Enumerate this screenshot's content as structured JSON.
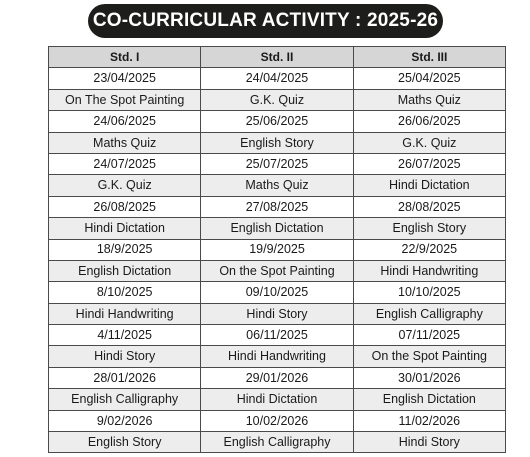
{
  "title": "CO-CURRICULAR ACTIVITY : 2025-26",
  "columns": [
    "Std. I",
    "Std. II",
    "Std. III"
  ],
  "rows": [
    [
      "23/04/2025",
      "24/04/2025",
      "25/04/2025"
    ],
    [
      "On The Spot Painting",
      "G.K. Quiz",
      "Maths Quiz"
    ],
    [
      "24/06/2025",
      "25/06/2025",
      "26/06/2025"
    ],
    [
      "Maths Quiz",
      "English Story",
      "G.K. Quiz"
    ],
    [
      "24/07/2025",
      "25/07/2025",
      "26/07/2025"
    ],
    [
      "G.K. Quiz",
      "Maths Quiz",
      "Hindi Dictation"
    ],
    [
      "26/08/2025",
      "27/08/2025",
      "28/08/2025"
    ],
    [
      "Hindi Dictation",
      "English Dictation",
      "English Story"
    ],
    [
      "18/9/2025",
      "19/9/2025",
      "22/9/2025"
    ],
    [
      "English Dictation",
      "On the Spot Painting",
      "Hindi Handwriting"
    ],
    [
      "8/10/2025",
      "09/10/2025",
      "10/10/2025"
    ],
    [
      "Hindi Handwriting",
      "Hindi Story",
      "English Calligraphy"
    ],
    [
      "4/11/2025",
      "06/11/2025",
      "07/11/2025"
    ],
    [
      "Hindi Story",
      "Hindi Handwriting",
      "On the Spot Painting"
    ],
    [
      "28/01/2026",
      "29/01/2026",
      "30/01/2026"
    ],
    [
      "English Calligraphy",
      "Hindi Dictation",
      "English Dictation"
    ],
    [
      "9/02/2026",
      "10/02/2026",
      "11/02/2026"
    ],
    [
      "English Story",
      "English Calligraphy",
      "Hindi Story"
    ]
  ]
}
